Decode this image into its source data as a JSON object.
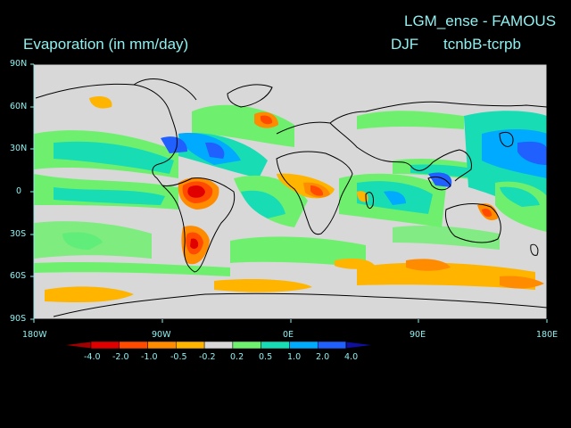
{
  "title": {
    "left": "Evaporation (in mm/day)",
    "right": "LGM_ense - FAMOUS",
    "season": "DJF",
    "experiment": "tcnbB-tcrpb"
  },
  "lat_labels": [
    "90N",
    "60N",
    "30N",
    "0",
    "30S",
    "60S",
    "90S"
  ],
  "lon_labels": [
    "180W",
    "90W",
    "0E",
    "90E",
    "180E"
  ],
  "colorbar": {
    "labels": [
      "-4.0",
      "-2.0",
      "-1.0",
      "-0.5",
      "-0.2",
      "0.2",
      "0.5",
      "1.0",
      "2.0",
      "4.0"
    ],
    "colors": [
      "#a00000",
      "#e00000",
      "#ff4a00",
      "#ff8c00",
      "#ffb400",
      "#d8d8d8",
      "#6ef06e",
      "#18dcb4",
      "#00aaff",
      "#2060ff",
      "#1010a0"
    ]
  },
  "colors": {
    "background": "#000000",
    "label": "#8ff0f0",
    "land_outline": "#000000",
    "neutral": "#d8d8d8"
  }
}
